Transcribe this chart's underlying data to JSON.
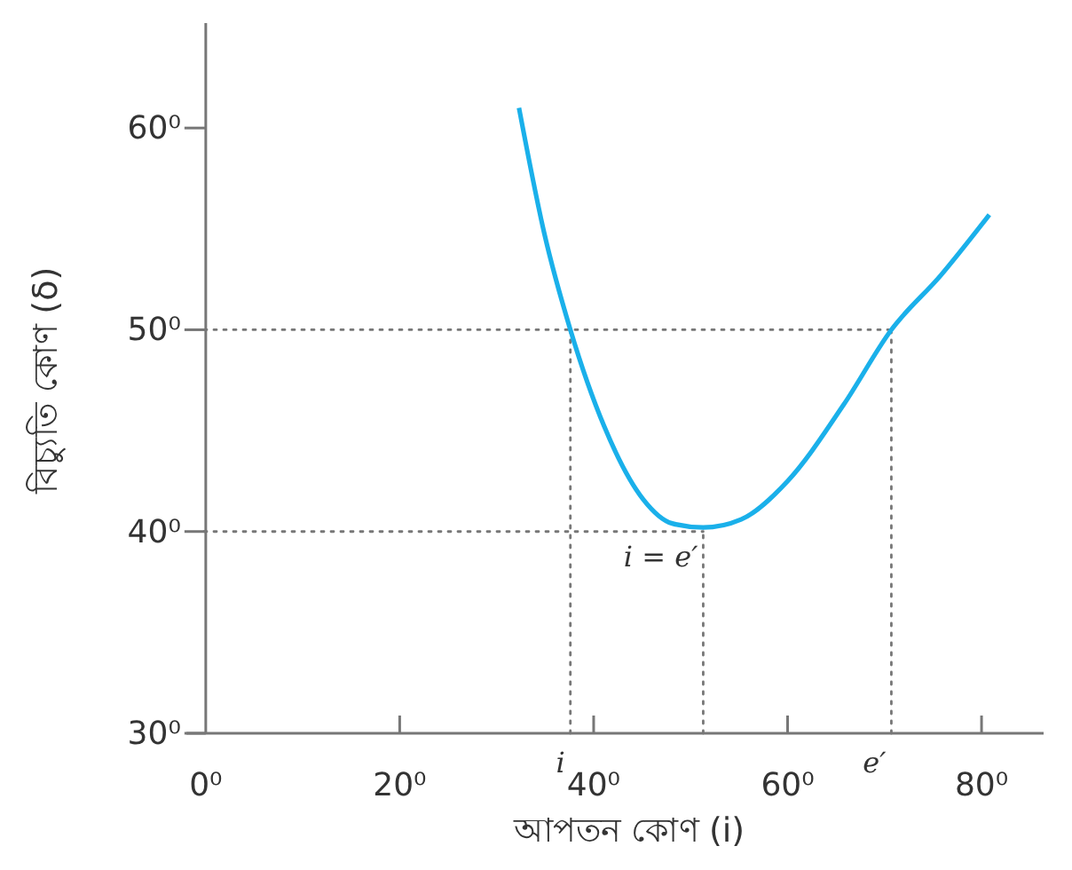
{
  "chart_data": {
    "type": "line",
    "xlabel": "আপতন কোণ (i)",
    "ylabel": "বিচ্যুতি কোণ (δ)",
    "xlim": [
      -2,
      86.4
    ],
    "ylim": [
      30,
      65.2
    ],
    "xticks": [
      {
        "value": 0,
        "label": "0⁰"
      },
      {
        "value": 20,
        "label": "20⁰"
      },
      {
        "value": 40,
        "label": "40⁰"
      },
      {
        "value": 60,
        "label": "60⁰"
      },
      {
        "value": 80,
        "label": "80⁰"
      }
    ],
    "yticks": [
      {
        "value": 30,
        "label": "30⁰"
      },
      {
        "value": 40,
        "label": "40⁰"
      },
      {
        "value": 50,
        "label": "50⁰"
      },
      {
        "value": 60,
        "label": "60⁰"
      }
    ],
    "series": [
      {
        "color": "#1ab0ea",
        "x": [
          32.3,
          34.9,
          37.6,
          41.1,
          45.1,
          48.1,
          51.3,
          55.2,
          60,
          65.8,
          70.7,
          75.8,
          80.8
        ],
        "values": [
          61,
          54.8,
          50,
          45.2,
          41.6,
          40.4,
          40.2,
          40.6,
          42.5,
          46.3,
          50,
          52.7,
          55.7
        ]
      }
    ],
    "ref_lines": [
      {
        "axis": "y",
        "value": 50,
        "line_style": "dotted",
        "color": "#777777"
      },
      {
        "axis": "y",
        "value": 40,
        "line_style": "dotted",
        "color": "#777777"
      },
      {
        "axis": "x",
        "value": 37.6,
        "line_style": "dotted",
        "color": "#777777"
      },
      {
        "axis": "x",
        "value": 51.3,
        "line_style": "dotted",
        "color": "#777777"
      },
      {
        "axis": "x",
        "value": 70.7,
        "line_style": "dotted",
        "color": "#777777"
      }
    ],
    "annotations": [
      {
        "text": "i",
        "x": 37.6,
        "y": 30
      },
      {
        "text": "i = e′",
        "x": 51.3,
        "y": 40.2
      },
      {
        "text": "e′",
        "x": 70.7,
        "y": 30
      }
    ],
    "grid": false,
    "marker": "none",
    "line_style": "solid"
  }
}
